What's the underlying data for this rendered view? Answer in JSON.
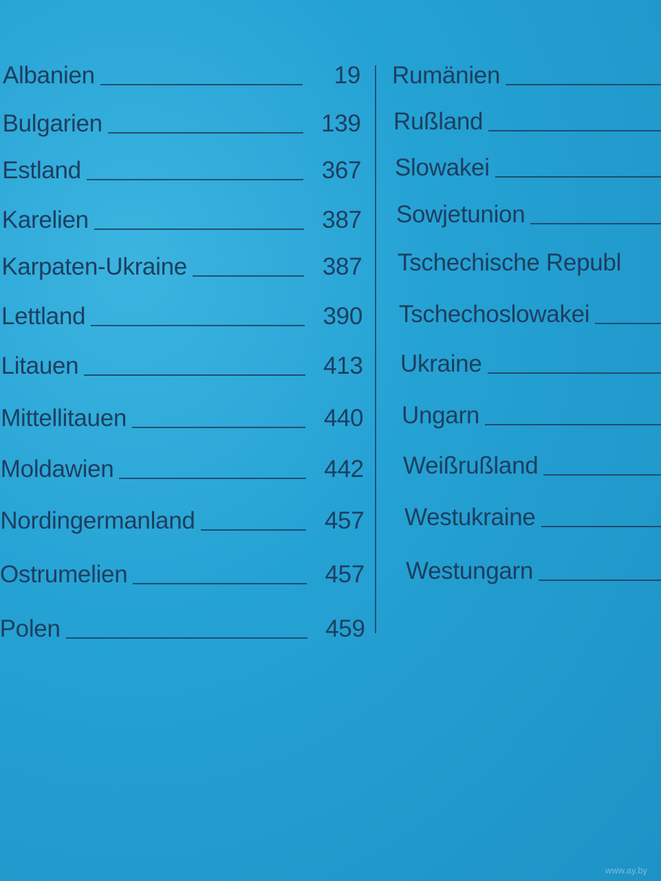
{
  "left_column": [
    {
      "name": "Albanien",
      "page": "19"
    },
    {
      "name": "Bulgarien",
      "page": "139"
    },
    {
      "name": "Estland",
      "page": "367"
    },
    {
      "name": "Karelien",
      "page": "387"
    },
    {
      "name": "Karpaten-Ukraine",
      "page": "387"
    },
    {
      "name": "Lettland",
      "page": "390"
    },
    {
      "name": "Litauen",
      "page": "413"
    },
    {
      "name": "Mittellitauen",
      "page": "440"
    },
    {
      "name": "Moldawien",
      "page": "442"
    },
    {
      "name": "Nordingermanland",
      "page": "457"
    },
    {
      "name": "Ostrumelien",
      "page": "457"
    },
    {
      "name": "Polen",
      "page": "459"
    }
  ],
  "right_column": [
    {
      "name": "Rumänien"
    },
    {
      "name": "Rußland"
    },
    {
      "name": "Slowakei"
    },
    {
      "name": "Sowjetunion"
    },
    {
      "name": "Tschechische Republ"
    },
    {
      "name": "Tschechoslowakei"
    },
    {
      "name": "Ukraine"
    },
    {
      "name": "Ungarn"
    },
    {
      "name": "Weißrußland"
    },
    {
      "name": "Westukraine"
    },
    {
      "name": "Westungarn"
    }
  ],
  "watermark": "www.ay.by",
  "colors": {
    "background": "#25a2d4",
    "text": "#1c3f60"
  }
}
